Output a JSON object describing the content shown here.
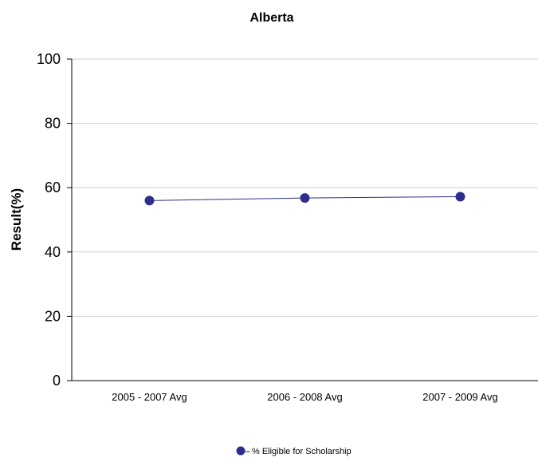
{
  "chart_data": {
    "type": "line",
    "title": "Alberta",
    "xlabel": "",
    "ylabel": "Result(%)",
    "categories": [
      "2005 - 2007 Avg",
      "2006 - 2008 Avg",
      "2007 - 2009 Avg"
    ],
    "ylim": [
      0,
      100
    ],
    "yticks": [
      0,
      20,
      40,
      60,
      80,
      100
    ],
    "grid": true,
    "legend_position": "bottom",
    "series": [
      {
        "name": "% Eligible for Scholarship",
        "values": [
          56,
          56.8,
          57.2
        ],
        "color": "#2e2e8f"
      }
    ]
  }
}
